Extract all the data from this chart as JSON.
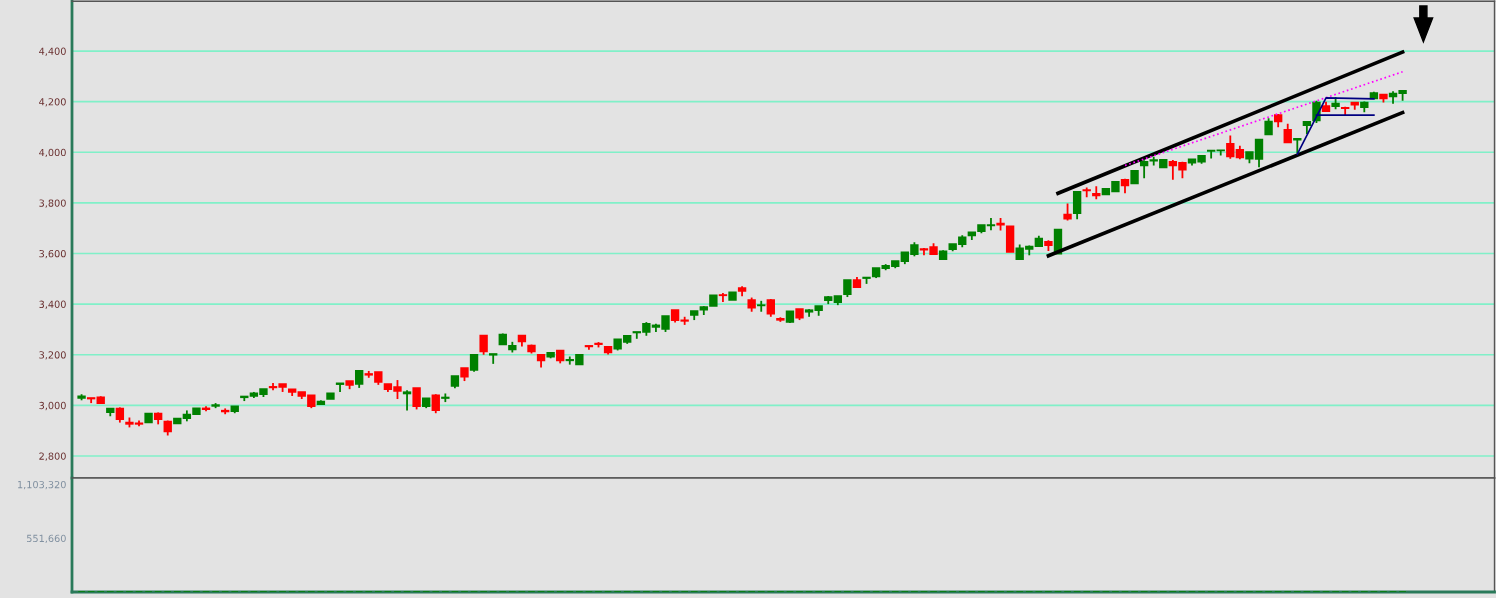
{
  "chart_data": [
    {
      "type": "candlestick",
      "categories": [
        null,
        null,
        null,
        null,
        null,
        null,
        null,
        null,
        null,
        null,
        null,
        null,
        null,
        null,
        null,
        null,
        null,
        null,
        null,
        null,
        null,
        null,
        null,
        null,
        null,
        null,
        null,
        null,
        null,
        null,
        null,
        null,
        null,
        null,
        null,
        null,
        null,
        null,
        null,
        null,
        null,
        null,
        null,
        null,
        null,
        null,
        null,
        null,
        null,
        null,
        null,
        null,
        null,
        null,
        null,
        null,
        null,
        null,
        null,
        null,
        null,
        null,
        null,
        null,
        null,
        null,
        null,
        null,
        null,
        null,
        null,
        null,
        null,
        null,
        null,
        null,
        null,
        null,
        null,
        null,
        null,
        null,
        null,
        null,
        null,
        null,
        null,
        null,
        null,
        null,
        null,
        null,
        null,
        null,
        null,
        null,
        null,
        null,
        null,
        null,
        null,
        null,
        null,
        null,
        null,
        null,
        null,
        null,
        null,
        null,
        null,
        null,
        null,
        null,
        null,
        null,
        null,
        null,
        null,
        null,
        null,
        null,
        null,
        null,
        null,
        null,
        null,
        null,
        null,
        null,
        null,
        null,
        null,
        null,
        null,
        null,
        null,
        null,
        null
      ],
      "ohlc": [
        [
          3029,
          3044,
          3020,
          3036
        ],
        [
          3029,
          3029,
          3009,
          3027
        ],
        [
          3032,
          3036,
          3009,
          3009
        ],
        [
          2973,
          2987,
          2957,
          2987
        ],
        [
          2987,
          2992,
          2932,
          2945
        ],
        [
          2932,
          2952,
          2913,
          2927
        ],
        [
          2929,
          2940,
          2917,
          2927
        ],
        [
          2933,
          2968,
          2933,
          2968
        ],
        [
          2968,
          2972,
          2925,
          2945
        ],
        [
          2936,
          2940,
          2881,
          2897
        ],
        [
          2929,
          2948,
          2929,
          2948
        ],
        [
          2949,
          2980,
          2937,
          2964
        ],
        [
          2965,
          2988,
          2965,
          2988
        ],
        [
          2988,
          2997,
          2977,
          2985
        ],
        [
          2998,
          3009,
          2989,
          3001
        ],
        [
          2979,
          2988,
          2965,
          2976
        ],
        [
          2977,
          2996,
          2969,
          2996
        ],
        [
          3032,
          3035,
          3017,
          3035
        ],
        [
          3037,
          3053,
          3029,
          3048
        ],
        [
          3044,
          3064,
          3033,
          3064
        ],
        [
          3073,
          3088,
          3060,
          3071
        ],
        [
          3084,
          3084,
          3053,
          3073
        ],
        [
          3063,
          3063,
          3037,
          3053
        ],
        [
          3052,
          3052,
          3025,
          3037
        ],
        [
          3040,
          3040,
          2989,
          2997
        ],
        [
          3005,
          3020,
          3005,
          3015
        ],
        [
          3025,
          3048,
          3025,
          3048
        ],
        [
          3084,
          3087,
          3053,
          3087
        ],
        [
          3096,
          3096,
          3064,
          3081
        ],
        [
          3085,
          3136,
          3069,
          3136
        ],
        [
          3124,
          3136,
          3109,
          3121
        ],
        [
          3132,
          3132,
          3081,
          3093
        ],
        [
          3084,
          3084,
          3053,
          3064
        ],
        [
          3072,
          3100,
          3025,
          3057
        ],
        [
          3047,
          3060,
          2980,
          3052
        ],
        [
          3068,
          3068,
          2984,
          2997
        ],
        [
          2997,
          3028,
          2989,
          3028
        ],
        [
          3040,
          3044,
          2969,
          2981
        ],
        [
          3029,
          3047,
          3013,
          3031
        ],
        [
          3077,
          3116,
          3068,
          3116
        ],
        [
          3147,
          3147,
          3096,
          3113
        ],
        [
          3140,
          3200,
          3133,
          3200
        ],
        [
          3276,
          3276,
          3200,
          3213
        ],
        [
          3200,
          3203,
          3164,
          3203
        ],
        [
          3241,
          3284,
          3241,
          3280
        ],
        [
          3221,
          3251,
          3209,
          3235
        ],
        [
          3276,
          3276,
          3233,
          3253
        ],
        [
          3236,
          3240,
          3205,
          3213
        ],
        [
          3200,
          3200,
          3150,
          3178
        ],
        [
          3192,
          3208,
          3186,
          3208
        ],
        [
          3216,
          3216,
          3166,
          3178
        ],
        [
          3178,
          3193,
          3161,
          3180
        ],
        [
          3162,
          3200,
          3162,
          3200
        ],
        [
          3235,
          3235,
          3220,
          3233
        ],
        [
          3244,
          3250,
          3229,
          3242
        ],
        [
          3231,
          3231,
          3201,
          3209
        ],
        [
          3224,
          3261,
          3217,
          3261
        ],
        [
          3251,
          3275,
          3243,
          3275
        ],
        [
          3288,
          3290,
          3263,
          3290
        ],
        [
          3290,
          3329,
          3275,
          3322
        ],
        [
          3310,
          3322,
          3290,
          3316
        ],
        [
          3302,
          3353,
          3290,
          3353
        ],
        [
          3376,
          3376,
          3327,
          3337
        ],
        [
          3336,
          3350,
          3318,
          3334
        ],
        [
          3357,
          3373,
          3337,
          3373
        ],
        [
          3378,
          3392,
          3357,
          3388
        ],
        [
          3393,
          3435,
          3393,
          3435
        ],
        [
          3436,
          3444,
          3408,
          3435
        ],
        [
          3417,
          3447,
          3417,
          3447
        ],
        [
          3463,
          3471,
          3431,
          3452
        ],
        [
          3416,
          3426,
          3370,
          3386
        ],
        [
          3395,
          3413,
          3370,
          3396
        ],
        [
          3416,
          3420,
          3350,
          3362
        ],
        [
          3342,
          3348,
          3330,
          3338
        ],
        [
          3330,
          3372,
          3325,
          3372
        ],
        [
          3380,
          3380,
          3337,
          3347
        ],
        [
          3370,
          3380,
          3350,
          3376
        ],
        [
          3376,
          3392,
          3354,
          3392
        ],
        [
          3416,
          3432,
          3400,
          3428
        ],
        [
          3408,
          3432,
          3396,
          3432
        ],
        [
          3439,
          3495,
          3428,
          3495
        ],
        [
          3495,
          3507,
          3467,
          3467
        ],
        [
          3503,
          3505,
          3480,
          3505
        ],
        [
          3510,
          3542,
          3503,
          3542
        ],
        [
          3542,
          3558,
          3534,
          3551
        ],
        [
          3550,
          3570,
          3542,
          3570
        ],
        [
          3570,
          3605,
          3558,
          3605
        ],
        [
          3597,
          3645,
          3589,
          3633
        ],
        [
          3618,
          3622,
          3593,
          3615
        ],
        [
          3625,
          3641,
          3597,
          3597
        ],
        [
          3578,
          3613,
          3578,
          3609
        ],
        [
          3617,
          3637,
          3609,
          3637
        ],
        [
          3637,
          3672,
          3625,
          3664
        ],
        [
          3672,
          3684,
          3653,
          3684
        ],
        [
          3688,
          3712,
          3680,
          3712
        ],
        [
          3711,
          3740,
          3692,
          3712
        ],
        [
          3718,
          3740,
          3691,
          3714
        ],
        [
          3707,
          3707,
          3606,
          3606
        ],
        [
          3578,
          3636,
          3578,
          3620
        ],
        [
          3618,
          3632,
          3593,
          3627
        ],
        [
          3629,
          3670,
          3629,
          3659
        ],
        [
          3646,
          3652,
          3610,
          3633
        ],
        [
          3599,
          3695,
          3599,
          3695
        ],
        [
          3754,
          3798,
          3730,
          3738
        ],
        [
          3759,
          3844,
          3735,
          3844
        ],
        [
          3851,
          3861,
          3822,
          3849
        ],
        [
          3836,
          3866,
          3814,
          3830
        ],
        [
          3834,
          3856,
          3834,
          3856
        ],
        [
          3845,
          3883,
          3845,
          3883
        ],
        [
          3891,
          3895,
          3838,
          3869
        ],
        [
          3877,
          3927,
          3877,
          3927
        ],
        [
          3948,
          3969,
          3897,
          3962
        ],
        [
          3967,
          3982,
          3948,
          3969
        ],
        [
          3940,
          3970,
          3940,
          3970
        ],
        [
          3962,
          3970,
          3891,
          3948
        ],
        [
          3958,
          3963,
          3897,
          3931
        ],
        [
          3959,
          3972,
          3948,
          3972
        ],
        [
          3963,
          3986,
          3955,
          3986
        ],
        [
          4005,
          4007,
          3975,
          4007
        ],
        [
          4007,
          4008,
          3987,
          4008
        ],
        [
          4033,
          4066,
          3974,
          3984
        ],
        [
          4010,
          4026,
          3972,
          3980
        ],
        [
          3975,
          4001,
          3957,
          4001
        ],
        [
          3974,
          4050,
          3941,
          4050
        ],
        [
          4071,
          4134,
          4071,
          4121
        ],
        [
          4147,
          4151,
          4099,
          4122
        ],
        [
          4089,
          4113,
          4039,
          4039
        ],
        [
          4050,
          4053,
          3997,
          4053
        ],
        [
          4107,
          4120,
          4072,
          4120
        ],
        [
          4126,
          4204,
          4116,
          4196
        ],
        [
          4183,
          4200,
          4162,
          4162
        ],
        [
          4182,
          4217,
          4170,
          4192
        ],
        [
          4176,
          4180,
          4147,
          4174
        ],
        [
          4196,
          4196,
          4168,
          4188
        ],
        [
          4178,
          4201,
          4158,
          4196
        ],
        [
          4213,
          4239,
          4213,
          4234
        ],
        [
          4228,
          4228,
          4197,
          4213
        ],
        [
          4221,
          4241,
          4192,
          4232
        ],
        [
          4234,
          4243,
          4204,
          4243
        ]
      ],
      "colors": [
        "#008000",
        "#ff0000",
        "#ff0000",
        "#008000",
        "#ff0000",
        "#ff0000",
        "#ff0000",
        "#008000",
        "#ff0000",
        "#ff0000",
        "#008000",
        "#008000",
        "#008000",
        "#ff0000",
        "#008000",
        "#ff0000",
        "#008000",
        "#008000",
        "#008000",
        "#008000",
        "#ff0000",
        "#ff0000",
        "#ff0000",
        "#ff0000",
        "#ff0000",
        "#008000",
        "#008000",
        "#008000",
        "#ff0000",
        "#008000",
        "#ff0000",
        "#ff0000",
        "#ff0000",
        "#ff0000",
        "#008000",
        "#ff0000",
        "#008000",
        "#ff0000",
        "#008000",
        "#008000",
        "#ff0000",
        "#008000",
        "#ff0000",
        "#008000",
        "#008000",
        "#008000",
        "#ff0000",
        "#ff0000",
        "#ff0000",
        "#008000",
        "#ff0000",
        "#008000",
        "#008000",
        "#ff0000",
        "#ff0000",
        "#ff0000",
        "#008000",
        "#008000",
        "#008000",
        "#008000",
        "#008000",
        "#008000",
        "#ff0000",
        "#ff0000",
        "#008000",
        "#008000",
        "#008000",
        "#ff0000",
        "#008000",
        "#ff0000",
        "#ff0000",
        "#008000",
        "#ff0000",
        "#ff0000",
        "#008000",
        "#ff0000",
        "#008000",
        "#008000",
        "#008000",
        "#008000",
        "#008000",
        "#ff0000",
        "#008000",
        "#008000",
        "#008000",
        "#008000",
        "#008000",
        "#008000",
        "#ff0000",
        "#ff0000",
        "#008000",
        "#008000",
        "#008000",
        "#008000",
        "#008000",
        "#008000",
        "#ff0000",
        "#ff0000",
        "#008000",
        "#008000",
        "#008000",
        "#ff0000",
        "#008000",
        "#ff0000",
        "#008000",
        "#ff0000",
        "#ff0000",
        "#008000",
        "#008000",
        "#ff0000",
        "#008000",
        "#008000",
        "#008000",
        "#008000",
        "#ff0000",
        "#ff0000",
        "#008000",
        "#008000",
        "#008000",
        "#008000",
        "#ff0000",
        "#ff0000",
        "#008000",
        "#008000",
        "#008000",
        "#ff0000",
        "#ff0000",
        "#008000",
        "#008000",
        "#008000",
        "#ff0000",
        "#008000",
        "#ff0000",
        "#ff0000",
        "#008000",
        "#008000",
        "#ff0000",
        "#008000",
        "#008000"
      ],
      "series": [
        {
          "type": "line",
          "color": "#000000",
          "line_style": "solid",
          "values": [
            null,
            null,
            null,
            null,
            null,
            null,
            null,
            null,
            null,
            null,
            null,
            null,
            null,
            null,
            null,
            null,
            null,
            null,
            null,
            null,
            null,
            null,
            null,
            null,
            null,
            null,
            null,
            null,
            null,
            null,
            null,
            null,
            null,
            null,
            null,
            null,
            null,
            null,
            null,
            null,
            null,
            null,
            null,
            null,
            null,
            null,
            null,
            null,
            null,
            null,
            null,
            null,
            null,
            null,
            null,
            null,
            null,
            null,
            null,
            null,
            null,
            null,
            null,
            null,
            null,
            null,
            null,
            null,
            null,
            null,
            null,
            null,
            null,
            null,
            null,
            null,
            null,
            null,
            null,
            null,
            null,
            null,
            null,
            null,
            null,
            null,
            null,
            null,
            null,
            null,
            null,
            null,
            null,
            null,
            null,
            null,
            null,
            null,
            null,
            null,
            null,
            null,
            3838,
            null,
            null,
            null,
            null,
            null,
            null,
            null,
            null,
            null,
            null,
            null,
            null,
            null,
            null,
            null,
            null,
            null,
            null,
            null,
            null,
            null,
            null,
            null,
            null,
            null,
            null,
            null,
            null,
            null,
            null,
            null,
            null,
            null,
            null,
            null,
            4396
          ]
        },
        {
          "type": "line",
          "color": "#000000",
          "line_style": "solid",
          "values": [
            null,
            null,
            null,
            null,
            null,
            null,
            null,
            null,
            null,
            null,
            null,
            null,
            null,
            null,
            null,
            null,
            null,
            null,
            null,
            null,
            null,
            null,
            null,
            null,
            null,
            null,
            null,
            null,
            null,
            null,
            null,
            null,
            null,
            null,
            null,
            null,
            null,
            null,
            null,
            null,
            null,
            null,
            null,
            null,
            null,
            null,
            null,
            null,
            null,
            null,
            null,
            null,
            null,
            null,
            null,
            null,
            null,
            null,
            null,
            null,
            null,
            null,
            null,
            null,
            null,
            null,
            null,
            null,
            null,
            null,
            null,
            null,
            null,
            null,
            null,
            null,
            null,
            null,
            null,
            null,
            null,
            null,
            null,
            null,
            null,
            null,
            null,
            null,
            null,
            null,
            null,
            null,
            null,
            null,
            null,
            null,
            null,
            null,
            null,
            null,
            null,
            3591,
            null,
            null,
            null,
            null,
            null,
            null,
            null,
            null,
            null,
            null,
            null,
            null,
            null,
            null,
            null,
            null,
            null,
            null,
            null,
            null,
            null,
            null,
            null,
            null,
            null,
            null,
            null,
            null,
            null,
            null,
            null,
            null,
            null,
            null,
            null,
            null,
            4157
          ]
        },
        {
          "type": "line",
          "color": "#ff00ff",
          "line_style": "dotted",
          "values": [
            null,
            null,
            null,
            null,
            null,
            null,
            null,
            null,
            null,
            null,
            null,
            null,
            null,
            null,
            null,
            null,
            null,
            null,
            null,
            null,
            null,
            null,
            null,
            null,
            null,
            null,
            null,
            null,
            null,
            null,
            null,
            null,
            null,
            null,
            null,
            null,
            null,
            null,
            null,
            null,
            null,
            null,
            null,
            null,
            null,
            null,
            null,
            null,
            null,
            null,
            null,
            null,
            null,
            null,
            null,
            null,
            null,
            null,
            null,
            null,
            null,
            null,
            null,
            null,
            null,
            null,
            null,
            null,
            null,
            null,
            null,
            null,
            null,
            null,
            null,
            null,
            null,
            null,
            null,
            null,
            null,
            null,
            null,
            null,
            null,
            null,
            null,
            null,
            null,
            null,
            null,
            null,
            null,
            null,
            null,
            null,
            null,
            null,
            null,
            null,
            null,
            null,
            null,
            null,
            null,
            null,
            null,
            null,
            null,
            3948,
            null,
            null,
            null,
            null,
            null,
            null,
            null,
            null,
            null,
            null,
            null,
            null,
            null,
            null,
            null,
            null,
            null,
            null,
            null,
            null,
            null,
            null,
            null,
            null,
            null,
            null,
            null,
            null,
            4318
          ]
        },
        {
          "type": "line",
          "color": "#000080",
          "line_style": "solid",
          "values": [
            null,
            null,
            null,
            null,
            null,
            null,
            null,
            null,
            null,
            null,
            null,
            null,
            null,
            null,
            null,
            null,
            null,
            null,
            null,
            null,
            null,
            null,
            null,
            null,
            null,
            null,
            null,
            null,
            null,
            null,
            null,
            null,
            null,
            null,
            null,
            null,
            null,
            null,
            null,
            null,
            null,
            null,
            null,
            null,
            null,
            null,
            null,
            null,
            null,
            null,
            null,
            null,
            null,
            null,
            null,
            null,
            null,
            null,
            null,
            null,
            null,
            null,
            null,
            null,
            null,
            null,
            null,
            null,
            null,
            null,
            null,
            null,
            null,
            null,
            null,
            null,
            null,
            null,
            null,
            null,
            null,
            null,
            null,
            null,
            null,
            null,
            null,
            null,
            null,
            null,
            null,
            null,
            null,
            null,
            null,
            null,
            null,
            null,
            null,
            null,
            null,
            null,
            null,
            null,
            null,
            null,
            null,
            null,
            null,
            null,
            null,
            null,
            null,
            null,
            null,
            null,
            null,
            null,
            null,
            null,
            null,
            null,
            null,
            null,
            null,
            null,
            null,
            3993,
            null,
            null,
            4215,
            null,
            null,
            null,
            null,
            4211,
            null,
            null,
            null
          ]
        },
        {
          "type": "line",
          "color": "#000080",
          "line_style": "solid",
          "values": [
            null,
            null,
            null,
            null,
            null,
            null,
            null,
            null,
            null,
            null,
            null,
            null,
            null,
            null,
            null,
            null,
            null,
            null,
            null,
            null,
            null,
            null,
            null,
            null,
            null,
            null,
            null,
            null,
            null,
            null,
            null,
            null,
            null,
            null,
            null,
            null,
            null,
            null,
            null,
            null,
            null,
            null,
            null,
            null,
            null,
            null,
            null,
            null,
            null,
            null,
            null,
            null,
            null,
            null,
            null,
            null,
            null,
            null,
            null,
            null,
            null,
            null,
            null,
            null,
            null,
            null,
            null,
            null,
            null,
            null,
            null,
            null,
            null,
            null,
            null,
            null,
            null,
            null,
            null,
            null,
            null,
            null,
            null,
            null,
            null,
            null,
            null,
            null,
            null,
            null,
            null,
            null,
            null,
            null,
            null,
            null,
            null,
            null,
            null,
            null,
            null,
            null,
            null,
            null,
            null,
            null,
            null,
            null,
            null,
            null,
            null,
            null,
            null,
            null,
            null,
            null,
            null,
            null,
            null,
            null,
            null,
            null,
            null,
            null,
            null,
            null,
            null,
            null,
            null,
            4147,
            null,
            null,
            null,
            null,
            null,
            4147,
            null,
            null,
            null
          ]
        }
      ],
      "ylim": [
        2713,
        4597
      ],
      "yticks": [
        {
          "value": 2800,
          "label": "2,800"
        },
        {
          "value": 3000,
          "label": "3,000"
        },
        {
          "value": 3200,
          "label": "3,200"
        },
        {
          "value": 3400,
          "label": "3,400"
        },
        {
          "value": 3600,
          "label": "3,600"
        },
        {
          "value": 3800,
          "label": "3,800"
        },
        {
          "value": 4000,
          "label": "4,000"
        },
        {
          "value": 4200,
          "label": "4,200"
        },
        {
          "value": 4400,
          "label": "4,400"
        }
      ],
      "grid": "y",
      "tick_labels": "y"
    },
    {
      "type": "bar",
      "categories": [
        null,
        null,
        null,
        null,
        null,
        null,
        null,
        null,
        null,
        null,
        null,
        null,
        null,
        null,
        null,
        null,
        null,
        null,
        null,
        null,
        null,
        null,
        null,
        null,
        null,
        null,
        null,
        null,
        null,
        null,
        null,
        null,
        null,
        null,
        null,
        null,
        null,
        null,
        null,
        null,
        null,
        null,
        null,
        null,
        null,
        null,
        null,
        null,
        null,
        null,
        null,
        null,
        null,
        null,
        null,
        null,
        null,
        null,
        null,
        null,
        null,
        null,
        null,
        null,
        null,
        null,
        null,
        null,
        null,
        null,
        null,
        null,
        null,
        null,
        null,
        null,
        null,
        null,
        null,
        null,
        null,
        null,
        null,
        null,
        null,
        null,
        null,
        null,
        null,
        null,
        null,
        null,
        null,
        null,
        null,
        null,
        null,
        null,
        null,
        null,
        null,
        null,
        null,
        null,
        null,
        null,
        null,
        null,
        null,
        null,
        null,
        null,
        null,
        null,
        null,
        null,
        null,
        null,
        null,
        null,
        null,
        null,
        null,
        null,
        null,
        null,
        null,
        null,
        null,
        null,
        null,
        null,
        null,
        null,
        null,
        null,
        null,
        null,
        null
      ],
      "values": [
        0,
        0,
        0,
        0,
        0,
        0,
        0,
        0,
        0,
        0,
        0,
        0,
        0,
        0,
        0,
        0,
        0,
        0,
        0,
        0,
        0,
        0,
        0,
        0,
        0,
        0,
        0,
        0,
        0,
        0,
        0,
        0,
        0,
        0,
        0,
        0,
        0,
        0,
        0,
        0,
        0,
        0,
        0,
        0,
        0,
        0,
        0,
        0,
        0,
        0,
        0,
        0,
        0,
        0,
        0,
        0,
        0,
        0,
        0,
        0,
        0,
        0,
        0,
        0,
        0,
        0,
        0,
        0,
        0,
        0,
        0,
        0,
        0,
        0,
        0,
        0,
        0,
        0,
        0,
        0,
        0,
        0,
        0,
        0,
        0,
        0,
        0,
        0,
        0,
        0,
        0,
        0,
        0,
        0,
        0,
        0,
        0,
        0,
        0,
        0,
        0,
        0,
        0,
        0,
        0,
        0,
        0,
        0,
        0,
        0,
        0,
        0,
        0,
        0,
        0,
        0,
        0,
        0,
        0,
        0,
        0,
        0,
        0,
        0,
        0,
        0,
        0,
        0,
        0,
        0,
        0,
        0,
        0,
        0,
        0,
        0,
        0,
        0,
        0
      ],
      "color": "#008000",
      "ylim": [
        0,
        1169520
      ],
      "yticks": [
        {
          "value": 551660,
          "label": "551,660"
        },
        {
          "value": 1103320,
          "label": "1,103,320"
        }
      ],
      "tick_labels": "y"
    }
  ]
}
